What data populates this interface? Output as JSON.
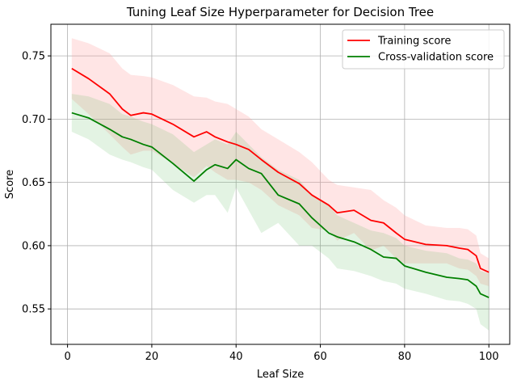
{
  "chart_data": {
    "type": "line",
    "title": "Tuning Leaf Size Hyperparameter for Decision Tree",
    "xlabel": "Leaf Size",
    "ylabel": "Score",
    "xlim": [
      -3.95,
      104.95
    ],
    "ylim": [
      0.522,
      0.775
    ],
    "xticks": [
      0,
      20,
      40,
      60,
      80,
      100
    ],
    "xtick_labels": [
      "0",
      "20",
      "40",
      "60",
      "80",
      "100"
    ],
    "yticks": [
      0.55,
      0.6,
      0.65,
      0.7,
      0.75
    ],
    "ytick_labels": [
      "0.55",
      "0.60",
      "0.65",
      "0.70",
      "0.75"
    ],
    "grid": true,
    "legend_position": "top-right",
    "x_knots": [
      1,
      5,
      10,
      13,
      15,
      18,
      20,
      25,
      30,
      33,
      35,
      38,
      40,
      43,
      46,
      50,
      55,
      58,
      62,
      64,
      68,
      72,
      75,
      78,
      80,
      85,
      90,
      93,
      95,
      97,
      98,
      100
    ],
    "series": [
      {
        "name": "Training score",
        "color": "#ff0000",
        "fill": "#ff9999",
        "fill_opacity": 0.25,
        "mean": [
          0.74,
          0.732,
          0.72,
          0.708,
          0.703,
          0.705,
          0.704,
          0.696,
          0.686,
          0.69,
          0.686,
          0.682,
          0.68,
          0.676,
          0.668,
          0.658,
          0.649,
          0.64,
          0.632,
          0.626,
          0.628,
          0.62,
          0.618,
          0.61,
          0.605,
          0.601,
          0.6,
          0.598,
          0.597,
          0.592,
          0.582,
          0.579
        ],
        "upper": [
          0.764,
          0.76,
          0.752,
          0.74,
          0.735,
          0.734,
          0.733,
          0.727,
          0.718,
          0.717,
          0.714,
          0.712,
          0.708,
          0.702,
          0.692,
          0.684,
          0.674,
          0.666,
          0.652,
          0.648,
          0.646,
          0.644,
          0.636,
          0.63,
          0.624,
          0.616,
          0.614,
          0.614,
          0.613,
          0.608,
          0.594,
          0.59
        ],
        "lower": [
          0.716,
          0.704,
          0.688,
          0.678,
          0.672,
          0.675,
          0.675,
          0.665,
          0.654,
          0.663,
          0.658,
          0.652,
          0.652,
          0.65,
          0.644,
          0.632,
          0.624,
          0.614,
          0.612,
          0.604,
          0.61,
          0.596,
          0.6,
          0.59,
          0.586,
          0.586,
          0.586,
          0.582,
          0.581,
          0.576,
          0.57,
          0.568
        ]
      },
      {
        "name": "Cross-validation score",
        "color": "#008000",
        "fill": "#66bb66",
        "fill_opacity": 0.18,
        "mean": [
          0.705,
          0.701,
          0.692,
          0.686,
          0.684,
          0.68,
          0.678,
          0.665,
          0.651,
          0.66,
          0.664,
          0.661,
          0.668,
          0.661,
          0.657,
          0.64,
          0.633,
          0.622,
          0.61,
          0.607,
          0.603,
          0.597,
          0.591,
          0.59,
          0.584,
          0.579,
          0.575,
          0.574,
          0.573,
          0.568,
          0.562,
          0.559
        ],
        "upper": [
          0.72,
          0.718,
          0.712,
          0.704,
          0.702,
          0.698,
          0.696,
          0.688,
          0.674,
          0.68,
          0.684,
          0.68,
          0.69,
          0.68,
          0.67,
          0.66,
          0.652,
          0.64,
          0.632,
          0.624,
          0.618,
          0.612,
          0.61,
          0.606,
          0.6,
          0.596,
          0.594,
          0.59,
          0.589,
          0.586,
          0.58,
          0.578
        ],
        "lower": [
          0.69,
          0.684,
          0.672,
          0.668,
          0.666,
          0.662,
          0.66,
          0.644,
          0.634,
          0.64,
          0.64,
          0.626,
          0.646,
          0.628,
          0.61,
          0.618,
          0.6,
          0.6,
          0.59,
          0.582,
          0.58,
          0.576,
          0.572,
          0.57,
          0.566,
          0.562,
          0.557,
          0.556,
          0.554,
          0.55,
          0.538,
          0.533
        ]
      }
    ]
  }
}
